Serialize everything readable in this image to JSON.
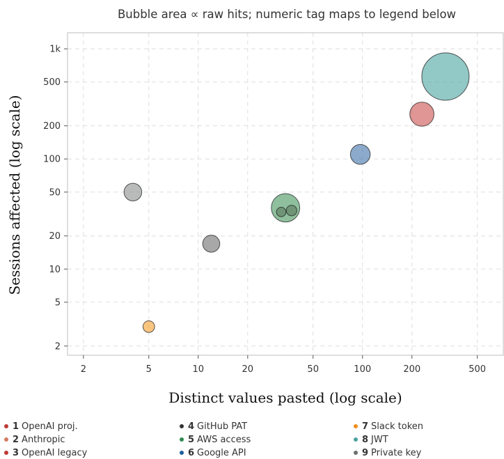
{
  "chart_data": {
    "type": "scatter",
    "title": "Bubble area ∝ raw hits; numeric tag maps to legend below",
    "xlabel": "Distinct values pasted (log scale)",
    "ylabel": "Sessions affected (log scale)",
    "xscale": "log",
    "yscale": "log",
    "xlim": [
      1.6,
      720
    ],
    "ylim": [
      1.65,
      1400
    ],
    "xticks": [
      {
        "value": 2,
        "label": "2"
      },
      {
        "value": 5,
        "label": "5"
      },
      {
        "value": 10,
        "label": "10"
      },
      {
        "value": 20,
        "label": "20"
      },
      {
        "value": 50,
        "label": "50"
      },
      {
        "value": 100,
        "label": "100"
      },
      {
        "value": 200,
        "label": "200"
      },
      {
        "value": 500,
        "label": "500"
      }
    ],
    "yticks": [
      {
        "value": 2,
        "label": "2"
      },
      {
        "value": 5,
        "label": "5"
      },
      {
        "value": 10,
        "label": "10"
      },
      {
        "value": 20,
        "label": "20"
      },
      {
        "value": 50,
        "label": "50"
      },
      {
        "value": 100,
        "label": "100"
      },
      {
        "value": 200,
        "label": "200"
      },
      {
        "value": 500,
        "label": "500"
      },
      {
        "value": 1000,
        "label": "1k"
      }
    ],
    "grid": true,
    "legend_position": "bottom",
    "legend": [
      {
        "tag": "1",
        "label": "OpenAI proj.",
        "color": "#c03a36"
      },
      {
        "tag": "2",
        "label": "Anthropic",
        "color": "#d47a5f"
      },
      {
        "tag": "3",
        "label": "OpenAI legacy",
        "color": "#c03a36"
      },
      {
        "tag": "4",
        "label": "GitHub PAT",
        "color": "#333333"
      },
      {
        "tag": "5",
        "label": "AWS access",
        "color": "#2e8b4f"
      },
      {
        "tag": "6",
        "label": "Google API",
        "color": "#1f5f9e"
      },
      {
        "tag": "7",
        "label": "Slack token",
        "color": "#f28e1c"
      },
      {
        "tag": "8",
        "label": "JWT",
        "color": "#4aa3a0"
      },
      {
        "tag": "9",
        "label": "Private key",
        "color": "#6b706e"
      }
    ],
    "points": [
      {
        "x": 320,
        "y": 560,
        "hits": 1000,
        "color": "#4aa3a0"
      },
      {
        "x": 230,
        "y": 255,
        "hits": 260,
        "color": "#c9504c"
      },
      {
        "x": 97,
        "y": 110,
        "hits": 175,
        "color": "#3f72a8"
      },
      {
        "x": 34,
        "y": 36,
        "hits": 360,
        "color": "#44955c"
      },
      {
        "x": 32,
        "y": 33,
        "hits": 40,
        "color": "#5a7a5c"
      },
      {
        "x": 37,
        "y": 34,
        "hits": 50,
        "color": "#5a7a5c"
      },
      {
        "x": 4,
        "y": 50,
        "hits": 140,
        "color": "#8a8d8c"
      },
      {
        "x": 12,
        "y": 17,
        "hits": 130,
        "color": "#6e6e6e"
      },
      {
        "x": 5,
        "y": 3,
        "hits": 60,
        "color": "#f5a02c"
      }
    ]
  }
}
